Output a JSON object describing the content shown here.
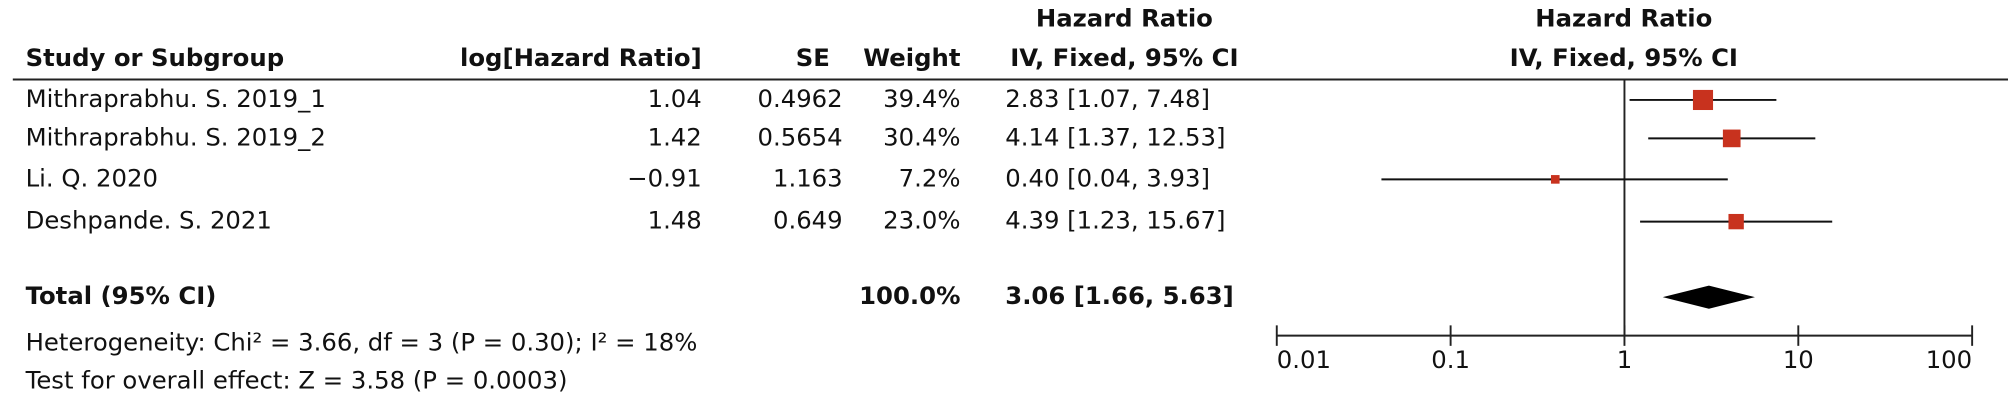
{
  "chart_data": {
    "type": "forest",
    "column_headers": {
      "study": "Study or Subgroup",
      "log_hr": "log[Hazard Ratio]",
      "se": "SE",
      "weight": "Weight",
      "ci_group": "Hazard Ratio",
      "ci_method": "IV, Fixed, 95% CI",
      "plot_group": "Hazard Ratio",
      "plot_method": "IV, Fixed, 95% CI"
    },
    "categories": [
      "Mithraprabhu. S. 2019_1",
      "Mithraprabhu. S. 2019_2",
      "Li. Q. 2020",
      "Deshpande. S. 2021"
    ],
    "log_hr": [
      1.04,
      1.42,
      {
        "value": -0.91,
        "label": "−0.91"
      },
      1.48
    ],
    "se": [
      0.4962,
      0.5654,
      1.163,
      0.649
    ],
    "weights": [
      39.4,
      30.4,
      7.2,
      23.0
    ],
    "weight_labels": [
      "39.4%",
      "30.4%",
      "7.2%",
      "23.0%"
    ],
    "values": [
      2.83,
      4.14,
      0.4,
      4.39
    ],
    "lower": [
      1.07,
      1.37,
      0.04,
      1.23
    ],
    "upper": [
      7.48,
      12.53,
      3.93,
      15.67
    ],
    "value_labels": [
      "2.83 [1.07, 7.48]",
      "4.14 [1.37, 12.53]",
      "0.40 [0.04, 3.93]",
      "4.39 [1.23, 15.67]"
    ],
    "color": "#c8321e",
    "total": {
      "label": "Total (95% CI)",
      "weight": 100,
      "weight_label": "100.0%",
      "value": 3.06,
      "lower": 1.66,
      "upper": 5.63,
      "value_label": "3.06 [1.66, 5.63]"
    },
    "heterogeneity": "Heterogeneity: Chi² = 3.66, df = 3 (P = 0.30); I² = 18%",
    "overall_effect": "Test for overall effect: Z = 3.58 (P = 0.0003)",
    "xscale": "log",
    "xlim": [
      0.01,
      100
    ],
    "xticks": [
      0.01,
      0.1,
      1,
      10,
      100
    ]
  }
}
